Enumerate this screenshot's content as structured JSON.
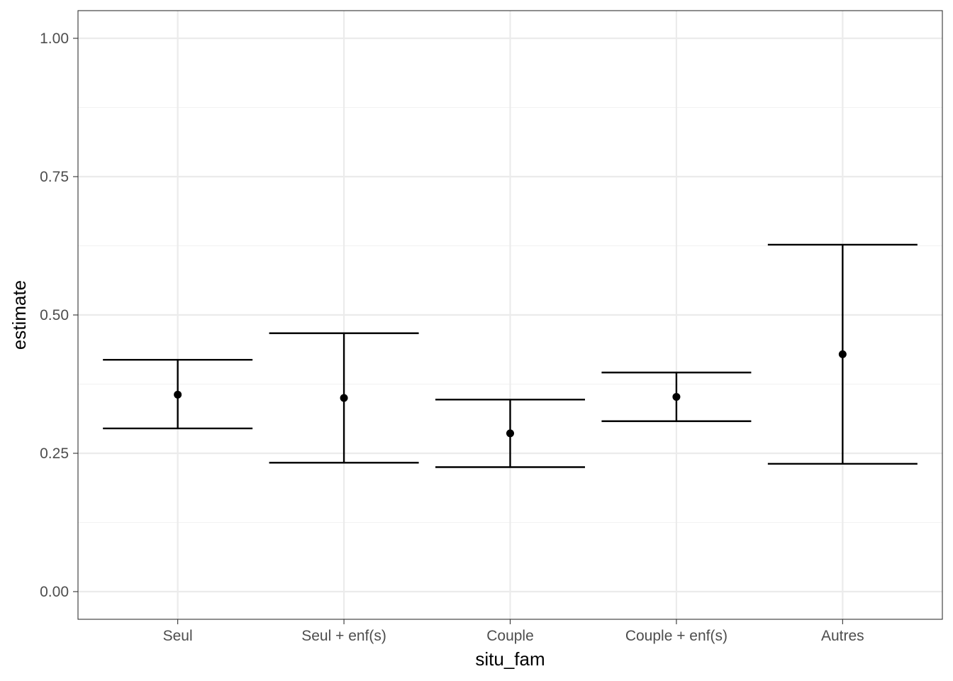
{
  "chart_data": {
    "type": "errorbar",
    "title": "",
    "xlabel": "situ_fam",
    "ylabel": "estimate",
    "categories": [
      "Seul",
      "Seul + enf(s)",
      "Couple",
      "Couple + enf(s)",
      "Autres"
    ],
    "estimate": [
      0.356,
      0.35,
      0.286,
      0.352,
      0.429
    ],
    "conf_low": [
      0.295,
      0.233,
      0.225,
      0.308,
      0.231
    ],
    "conf_high": [
      0.419,
      0.467,
      0.347,
      0.396,
      0.627
    ],
    "ylim": [
      -0.05,
      1.05
    ],
    "y_ticks": [
      0.0,
      0.25,
      0.5,
      0.75,
      1.0
    ],
    "y_tick_labels": [
      "0.00",
      "0.25",
      "0.50",
      "0.75",
      "1.00"
    ],
    "grid": true,
    "colors": {
      "mark": "#000000",
      "grid_major": "#ebebeb",
      "grid_minor": "#f2f2f2",
      "panel_border": "#333333",
      "tick_text": "#4d4d4d",
      "axis_title": "#000000"
    }
  }
}
